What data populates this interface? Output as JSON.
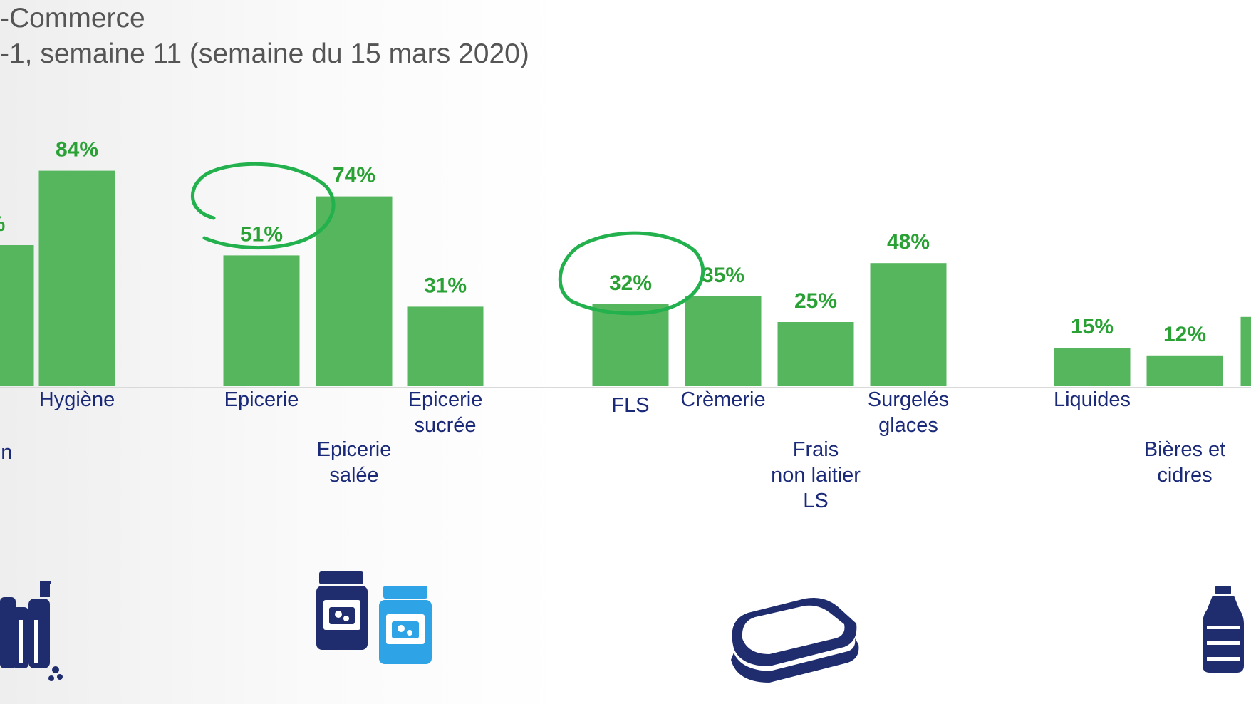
{
  "header": {
    "title": "-Commerce",
    "subtitle": "-1, semaine 11 (semaine du 15 mars 2020)"
  },
  "colors": {
    "bar": "#55b65e",
    "value_label": "#2aa134",
    "category_label": "#1b2a78",
    "highlight": "#22b14c"
  },
  "icons": [
    "cleaning-products-icon",
    "jars-icon",
    "sandwich-icon",
    "water-bottle-icon"
  ],
  "chart_data": {
    "type": "bar",
    "title": "",
    "xlabel": "",
    "ylabel": "",
    "ylim": [
      0,
      100
    ],
    "grid": false,
    "legend": "none",
    "categories": [
      "",
      "Hygiène",
      "Epicerie",
      "Epicerie salée",
      "Epicerie sucrée",
      "FLS",
      "Crèmerie",
      "Frais non laitier LS",
      "Surgelés glaces",
      "Liquides",
      "Bières et cidres",
      ""
    ],
    "category_lines": [
      [
        "tien"
      ],
      [
        "Hygiène"
      ],
      [
        "Epicerie"
      ],
      [
        "Epicerie",
        "salée"
      ],
      [
        "Epicerie",
        "sucrée"
      ],
      [
        "FLS"
      ],
      [
        "Crèmerie"
      ],
      [
        "Frais",
        "non laitier",
        "LS"
      ],
      [
        "Surgelés",
        "glaces"
      ],
      [
        "Liquides"
      ],
      [
        "Bières et",
        "cidres"
      ],
      [
        "",
        ""
      ]
    ],
    "values": [
      55,
      84,
      51,
      74,
      31,
      32,
      35,
      25,
      48,
      15,
      12,
      27
    ],
    "value_labels": [
      "%",
      "84%",
      "51%",
      "74%",
      "31%",
      "32%",
      "35%",
      "25%",
      "48%",
      "15%",
      "12%",
      ""
    ],
    "highlighted": [
      "Epicerie",
      "FLS"
    ]
  }
}
